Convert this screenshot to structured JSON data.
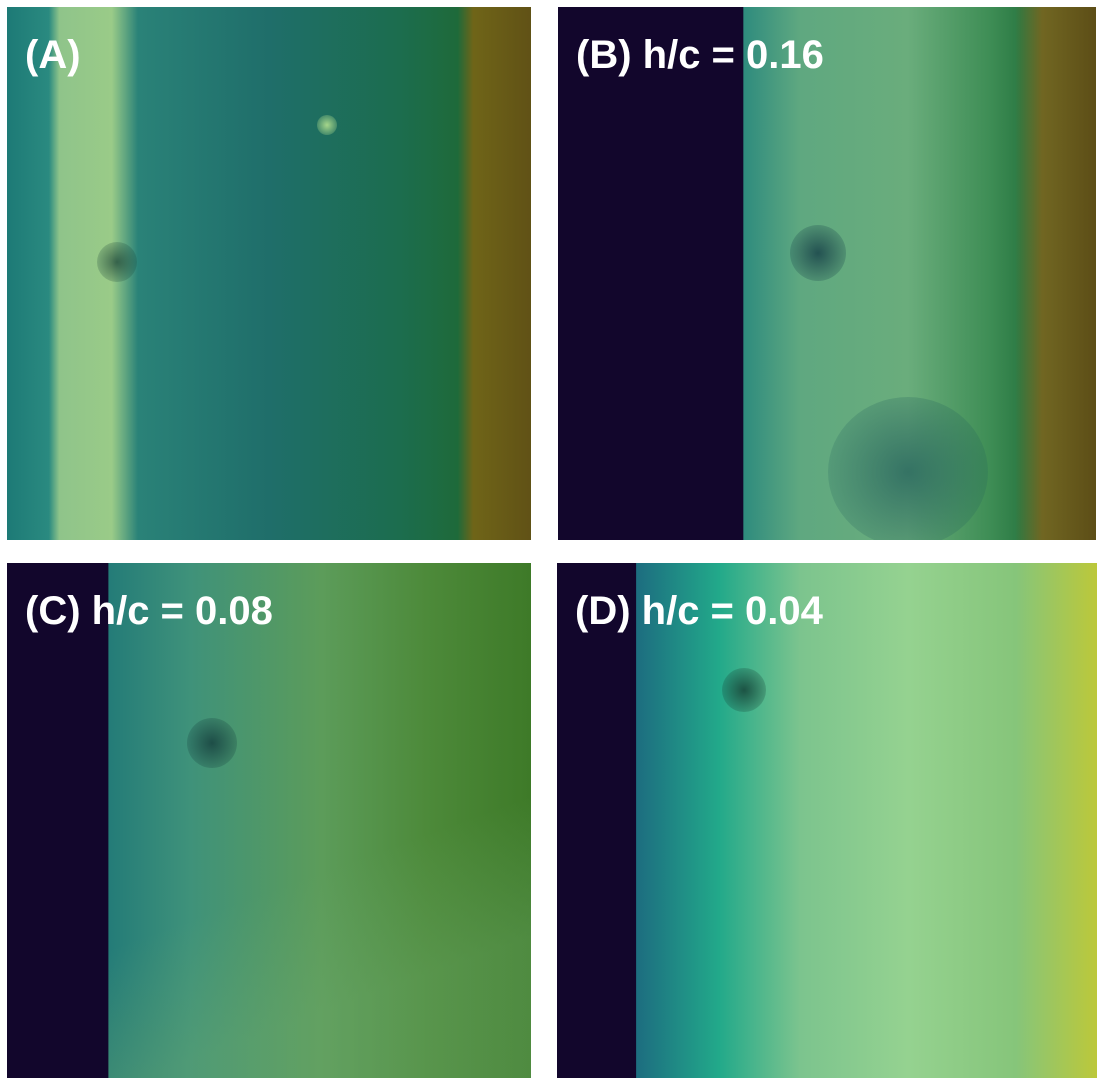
{
  "panels": [
    {
      "label": "(A)"
    },
    {
      "label": "(B) h/c = 0.16"
    },
    {
      "label": "(C) h/c = 0.08"
    },
    {
      "label": "(D) h/c = 0.04"
    }
  ]
}
